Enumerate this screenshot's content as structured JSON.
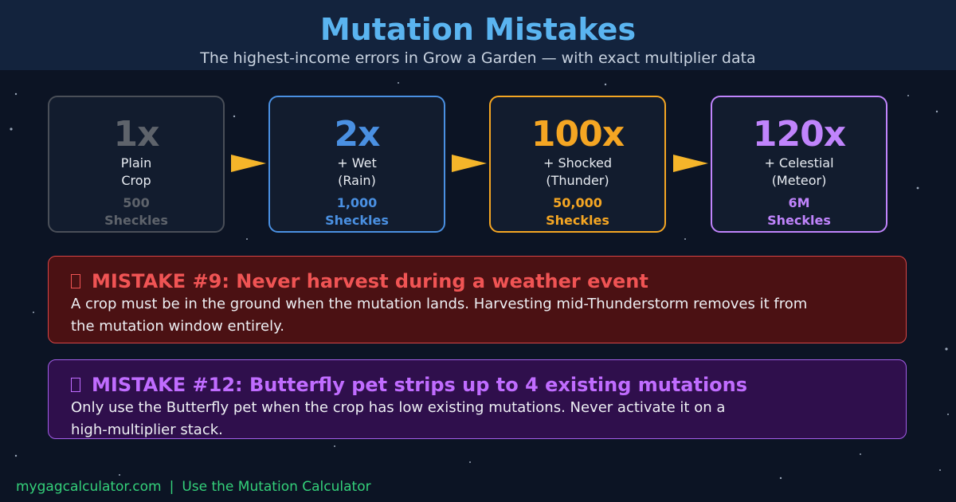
{
  "header": {
    "title": "Mutation Mistakes",
    "subtitle": "The highest-income errors in Grow a Garden — with exact multiplier data"
  },
  "cards": [
    {
      "multiplier": "1x",
      "label_lines": [
        "Plain",
        "Crop"
      ],
      "amount": "500",
      "unit": "Sheckles"
    },
    {
      "multiplier": "2x",
      "label_lines": [
        "+ Wet",
        "(Rain)"
      ],
      "amount": "1,000",
      "unit": "Sheckles"
    },
    {
      "multiplier": "100x",
      "label_lines": [
        "+ Shocked",
        "(Thunder)"
      ],
      "amount": "50,000",
      "unit": "Sheckles"
    },
    {
      "multiplier": "120x",
      "label_lines": [
        "+ Celestial",
        "(Meteor)"
      ],
      "amount": "6M",
      "unit": "Sheckles"
    }
  ],
  "mistakes": [
    {
      "title": "MISTAKE #9: Never harvest during a weather event",
      "body_lines": [
        "A crop must be in the ground when the mutation lands. Harvesting mid-Thunderstorm removes it from",
        "the mutation window entirely."
      ]
    },
    {
      "title": "MISTAKE #12: Butterfly pet strips up to 4 existing mutations",
      "body_lines": [
        "Only use the Butterfly pet when the crop has low existing mutations. Never activate it on a",
        "high-multiplier stack."
      ]
    }
  ],
  "footer": {
    "site": "mygagcalculator.com",
    "separator": "|",
    "link": "Use the Mutation Calculator"
  }
}
